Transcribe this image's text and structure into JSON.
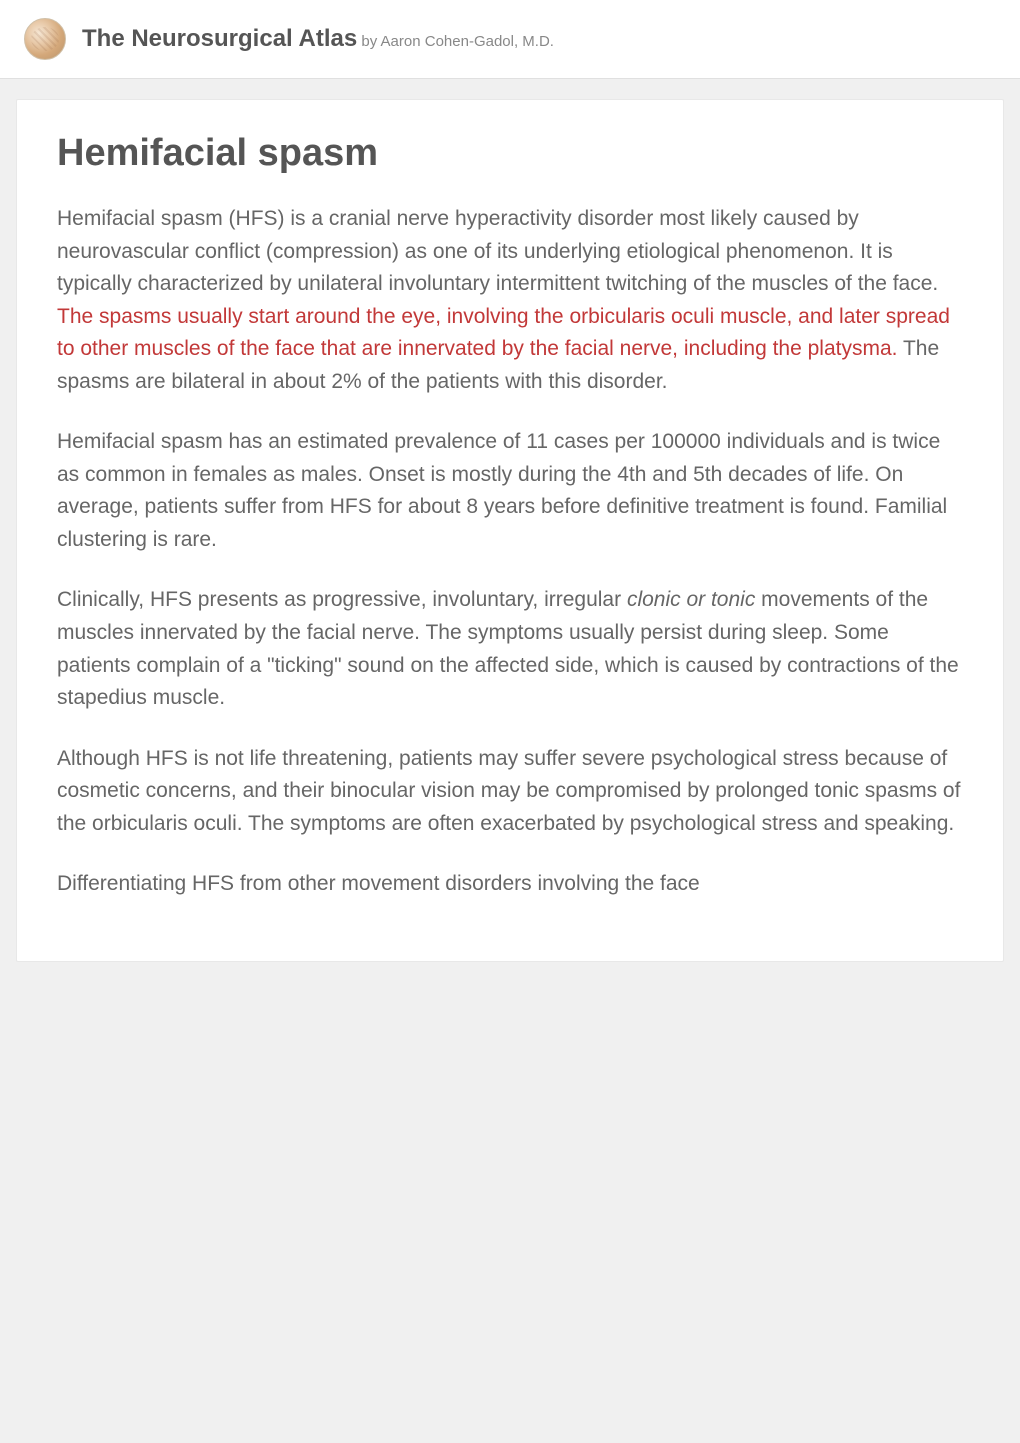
{
  "header": {
    "title_bold": "The Neurosurgical Atlas",
    "author_prefix": " by ",
    "author_name": "Aaron Cohen-Gadol, M.D."
  },
  "article": {
    "title": "Hemifacial spasm",
    "paragraphs": [
      {
        "segments": [
          {
            "text": "Hemifacial spasm (HFS) is a cranial nerve hyperactivity disorder most likely caused by neurovascular conflict (compression) as one of its underlying etiological phenomenon. It is typically characterized by unilateral involuntary intermittent twitching of the muscles of the face. ",
            "type": "normal"
          },
          {
            "text": "The spasms usually start around the eye, involving the orbicularis oculi muscle, and later spread to other muscles of the face that are innervated by the facial nerve, including the platysma.",
            "type": "highlight"
          },
          {
            "text": " The spasms are bilateral in about 2% of the patients with this disorder.",
            "type": "normal"
          }
        ]
      },
      {
        "segments": [
          {
            "text": "Hemifacial spasm has an estimated prevalence of 11 cases per 100000 individuals and is twice as common in females as males. Onset is mostly during the 4th and 5th decades of life. On average, patients suffer from HFS for about 8 years before definitive treatment is found.  Familial clustering is rare.",
            "type": "normal"
          }
        ]
      },
      {
        "segments": [
          {
            "text": "Clinically, HFS presents as progressive, involuntary, irregular ",
            "type": "normal"
          },
          {
            "text": "clonic or tonic",
            "type": "italic"
          },
          {
            "text": " movements of the muscles innervated by the facial nerve. The symptoms usually persist during sleep. Some patients complain of a \"ticking\" sound on the affected side, which is caused by contractions of the stapedius muscle.",
            "type": "normal"
          }
        ]
      },
      {
        "segments": [
          {
            "text": "Although HFS is not life threatening, patients may suffer severe psychological stress because of cosmetic concerns, and their binocular vision may be compromised by prolonged tonic spasms of the orbicularis oculi. The symptoms are often exacerbated by psychological stress and speaking.",
            "type": "normal"
          }
        ]
      },
      {
        "segments": [
          {
            "text": "Differentiating HFS from other movement disorders involving the face",
            "type": "normal"
          }
        ]
      }
    ]
  },
  "styling": {
    "body_bg": "#f0f0f0",
    "content_bg": "#ffffff",
    "title_color": "#555555",
    "body_text_color": "#666666",
    "highlight_color": "#c23838",
    "author_color": "#888888",
    "title_fontsize": 38,
    "body_fontsize": 21,
    "header_title_fontsize": 24,
    "header_author_fontsize": 15,
    "line_height": 1.55
  }
}
